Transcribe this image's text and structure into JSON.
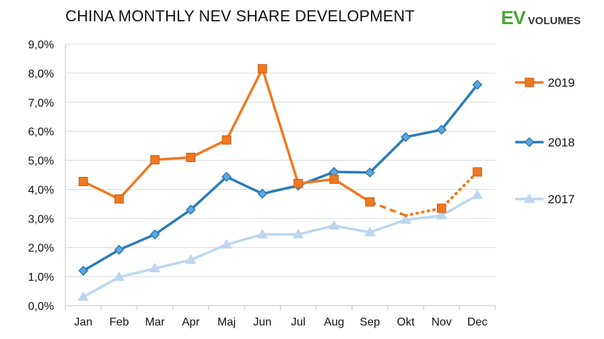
{
  "header": {
    "title": "CHINA MONTHLY NEV SHARE DEVELOPMENT"
  },
  "logo": {
    "ev": "EV",
    "volumes": "VOLUMES",
    "color": "#4ca534",
    "volumes_color": "#333333"
  },
  "chart_data": {
    "type": "line",
    "title": "CHINA MONTHLY NEV SHARE DEVELOPMENT",
    "xlabel": "",
    "ylabel": "",
    "categories": [
      "Jan",
      "Feb",
      "Mar",
      "Apr",
      "Maj",
      "Jun",
      "Jul",
      "Aug",
      "Sep",
      "Okt",
      "Nov",
      "Dec"
    ],
    "ylim": [
      0,
      9
    ],
    "yticks": [
      "0,0%",
      "1,0%",
      "2,0%",
      "3,0%",
      "4,0%",
      "5,0%",
      "6,0%",
      "7,0%",
      "8,0%",
      "9,0%"
    ],
    "grid": true,
    "legend": "right",
    "series": [
      {
        "name": "2019",
        "color": "#f07820",
        "marker": "square",
        "values": [
          4.27,
          3.67,
          5.02,
          5.1,
          5.7,
          8.15,
          4.2,
          4.35,
          3.57,
          3.1,
          3.35,
          4.6
        ],
        "dashed_from": "Sep"
      },
      {
        "name": "2018",
        "color": "#2a7bb8",
        "marker": "diamond",
        "values": [
          1.2,
          1.92,
          2.45,
          3.3,
          4.43,
          3.85,
          4.13,
          4.6,
          4.58,
          5.8,
          6.05,
          7.6
        ]
      },
      {
        "name": "2017",
        "color": "#bcd6ee",
        "marker": "triangle",
        "values": [
          0.3,
          0.98,
          1.28,
          1.57,
          2.1,
          2.45,
          2.45,
          2.75,
          2.52,
          2.95,
          3.1,
          3.8
        ]
      }
    ]
  }
}
